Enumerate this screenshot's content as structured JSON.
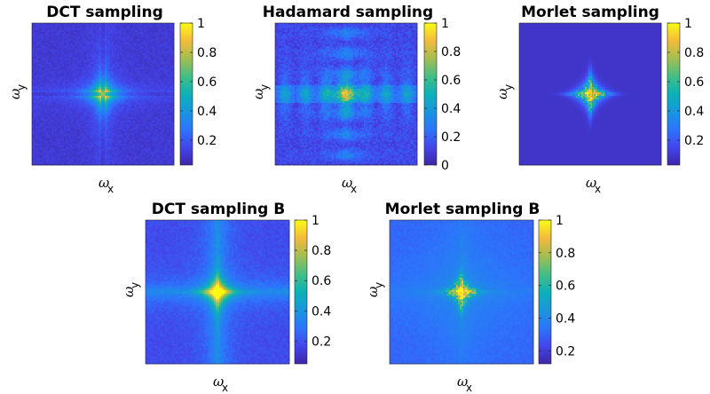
{
  "chart_data": [
    {
      "type": "heatmap",
      "title": "DCT sampling",
      "xlabel": "ω",
      "xlabel_sub": "x",
      "ylabel": "ω",
      "ylabel_sub": "y",
      "pattern": "cross",
      "colorbar": {
        "range": [
          0.03,
          1
        ],
        "ticks": [
          0.2,
          0.4,
          0.6,
          0.8,
          1
        ],
        "tick_labels": [
          "0.2",
          "0.4",
          "0.6",
          "0.8",
          "1"
        ]
      }
    },
    {
      "type": "heatmap",
      "title": "Hadamard sampling",
      "xlabel": "ω",
      "xlabel_sub": "x",
      "ylabel": "ω",
      "ylabel_sub": "y",
      "pattern": "grid",
      "colorbar": {
        "range": [
          0,
          1
        ],
        "ticks": [
          0,
          0.2,
          0.4,
          0.6,
          0.8,
          1
        ],
        "tick_labels": [
          "0",
          "0.2",
          "0.4",
          "0.6",
          "0.8",
          "1"
        ]
      }
    },
    {
      "type": "heatmap",
      "title": "Morlet sampling",
      "xlabel": "ω",
      "xlabel_sub": "x",
      "ylabel": "ω",
      "ylabel_sub": "y",
      "pattern": "star",
      "colorbar": {
        "range": [
          0.03,
          1
        ],
        "ticks": [
          0.2,
          0.4,
          0.6,
          0.8,
          1
        ],
        "tick_labels": [
          "0.2",
          "0.4",
          "0.6",
          "0.8",
          "1"
        ]
      }
    },
    {
      "type": "heatmap",
      "title": "DCT sampling B",
      "xlabel": "ω",
      "xlabel_sub": "x",
      "ylabel": "ω",
      "ylabel_sub": "y",
      "pattern": "crossB",
      "colorbar": {
        "range": [
          0.05,
          1
        ],
        "ticks": [
          0.2,
          0.4,
          0.6,
          0.8,
          1
        ],
        "tick_labels": [
          "0.2",
          "0.4",
          "0.6",
          "0.8",
          "1"
        ]
      }
    },
    {
      "type": "heatmap",
      "title": "Morlet sampling B",
      "xlabel": "ω",
      "xlabel_sub": "x",
      "ylabel": "ω",
      "ylabel_sub": "y",
      "pattern": "starB",
      "colorbar": {
        "range": [
          0.12,
          1
        ],
        "ticks": [
          0.2,
          0.4,
          0.6,
          0.8,
          1
        ],
        "tick_labels": [
          "0.2",
          "0.4",
          "0.6",
          "0.8",
          "1"
        ]
      }
    }
  ]
}
